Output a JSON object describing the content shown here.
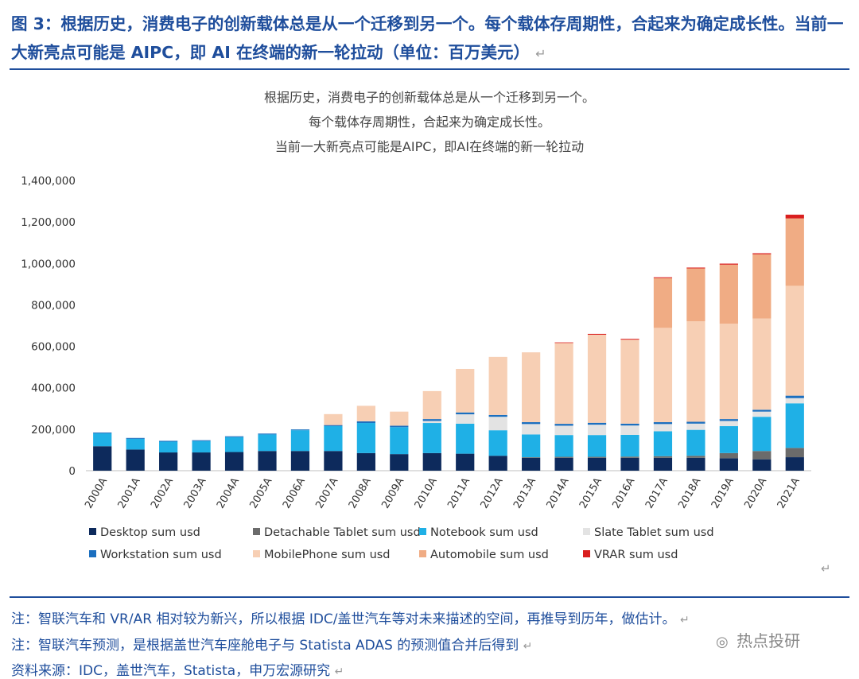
{
  "figure_title": "图 3：根据历史，消费电子的创新载体总是从一个迁移到另一个。每个载体存周期性，合起来为确定成长性。当前一大新亮点可能是 AIPC，即 AI 在终端的新一轮拉动（单位：百万美元）",
  "return_mark": "↵",
  "notes": [
    "注：智联汽车和 VR/AR 相对较为新兴，所以根据 IDC/盖世汽车等对未来描述的空间，再推导到历年，做估计。",
    "注：智联汽车预测，是根据盖世汽车座舱电子与 Statista ADAS 的预测值合并后得到",
    "资料来源：IDC，盖世汽车，Statista，申万宏源研究"
  ],
  "watermark": {
    "icon": "wechat-icon",
    "text": "热点投研"
  },
  "colors": {
    "Desktop": "#0d2a5c",
    "DetachableTablet": "#6b6b6b",
    "Notebook": "#1fb0e6",
    "SlateTablet": "#e3e3e3",
    "Workstation": "#1b6fbf",
    "MobilePhone": "#f7cfb4",
    "Automobile": "#f0ac84",
    "VRAR": "#d91e1e"
  },
  "chart_data": {
    "type": "bar",
    "stacked": true,
    "title_lines": [
      "根据历史，消费电子的创新载体总是从一个迁移到另一个。",
      "每个载体存周期性，合起来为确定成长性。",
      "当前一大新亮点可能是AIPC，即AI在终端的新一轮拉动"
    ],
    "categories": [
      "2000A",
      "2001A",
      "2002A",
      "2003A",
      "2004A",
      "2005A",
      "2006A",
      "2007A",
      "2008A",
      "2009A",
      "2010A",
      "2011A",
      "2012A",
      "2013A",
      "2014A",
      "2015A",
      "2016A",
      "2017A",
      "2018A",
      "2019A",
      "2020A",
      "2021A"
    ],
    "ylim": [
      0,
      1400000
    ],
    "yticks": [
      0,
      200000,
      400000,
      600000,
      800000,
      1000000,
      1200000,
      1400000
    ],
    "ytick_labels": [
      "0",
      "200,000",
      "400,000",
      "600,000",
      "800,000",
      "1,000,000",
      "1,200,000",
      "1,400,000"
    ],
    "series": [
      {
        "key": "Desktop",
        "name": "Desktop sum usd",
        "values": [
          118000,
          102000,
          88000,
          88000,
          90000,
          95000,
          95000,
          95000,
          85000,
          80000,
          85000,
          82000,
          72000,
          62000,
          62000,
          62000,
          62000,
          62000,
          62000,
          60000,
          55000,
          65000
        ]
      },
      {
        "key": "DetachableTablet",
        "name": "Detachable Tablet sum usd",
        "values": [
          0,
          0,
          0,
          0,
          0,
          0,
          0,
          0,
          0,
          0,
          0,
          0,
          0,
          3000,
          5000,
          5000,
          6000,
          8000,
          10000,
          25000,
          40000,
          45000
        ]
      },
      {
        "key": "Notebook",
        "name": "Notebook sum usd",
        "values": [
          62000,
          52000,
          52000,
          55000,
          72000,
          80000,
          100000,
          120000,
          145000,
          130000,
          145000,
          145000,
          123000,
          110000,
          105000,
          105000,
          105000,
          120000,
          125000,
          130000,
          165000,
          215000
        ]
      },
      {
        "key": "SlateTablet",
        "name": "Slate Tablet sum usd",
        "values": [
          0,
          0,
          0,
          0,
          0,
          0,
          0,
          0,
          0,
          0,
          10000,
          45000,
          65000,
          50000,
          45000,
          50000,
          45000,
          35000,
          30000,
          25000,
          25000,
          25000
        ]
      },
      {
        "key": "Workstation",
        "name": "Workstation sum usd",
        "values": [
          4000,
          4000,
          4000,
          4000,
          4000,
          4000,
          4000,
          5000,
          8000,
          7000,
          9000,
          9000,
          9000,
          9000,
          9000,
          9000,
          9000,
          9000,
          9000,
          9000,
          9000,
          12000
        ]
      },
      {
        "key": "MobilePhone",
        "name": "MobilePhone sum usd",
        "values": [
          0,
          0,
          0,
          0,
          0,
          0,
          0,
          53000,
          75000,
          68000,
          135000,
          210000,
          280000,
          337000,
          390000,
          425000,
          405000,
          455000,
          485000,
          460000,
          440000,
          530000
        ]
      },
      {
        "key": "Automobile",
        "name": "Automobile sum usd",
        "values": [
          0,
          0,
          0,
          0,
          0,
          0,
          0,
          0,
          0,
          0,
          0,
          0,
          0,
          0,
          0,
          0,
          0,
          240000,
          255000,
          285000,
          310000,
          325000
        ]
      },
      {
        "key": "VRAR",
        "name": "VRAR sum usd",
        "values": [
          0,
          0,
          0,
          0,
          0,
          0,
          0,
          0,
          0,
          0,
          0,
          0,
          0,
          0,
          3000,
          4000,
          4000,
          4000,
          4000,
          5000,
          5000,
          18000
        ]
      }
    ],
    "legend_position": "bottom"
  }
}
